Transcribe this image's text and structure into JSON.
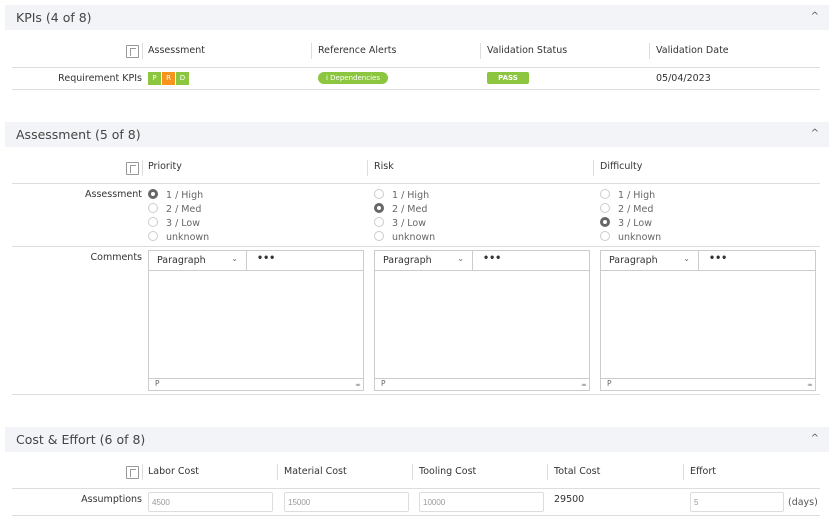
{
  "kpis": {
    "title": "KPIs (4 of 8)",
    "columns": [
      "Assessment",
      "Reference Alerts",
      "Validation Status",
      "Validation Date"
    ],
    "row": {
      "label": "Requirement KPIs",
      "badges": [
        {
          "text": "P",
          "color": "#8cc63f"
        },
        {
          "text": "R",
          "color": "#f7941d"
        },
        {
          "text": "D",
          "color": "#8cc63f"
        }
      ],
      "alert": "i Dependencies",
      "status": "PASS",
      "date": "05/04/2023"
    }
  },
  "assessment": {
    "title": "Assessment (5 of 8)",
    "columns": [
      "Priority",
      "Risk",
      "Difficulty"
    ],
    "row_label": "Assessment",
    "comments_label": "Comments",
    "options": [
      "1 / High",
      "2 / Med",
      "3 / Low",
      "unknown"
    ],
    "selected": {
      "Priority": "1 / High",
      "Risk": "2 / Med",
      "Difficulty": "3 / Low"
    },
    "editor": {
      "format": "Paragraph",
      "more": "•••",
      "footer": "P"
    }
  },
  "cost": {
    "title": "Cost & Effort (6 of 8)",
    "columns": [
      "Labor Cost",
      "Material Cost",
      "Tooling Cost",
      "Total Cost",
      "Effort"
    ],
    "row": {
      "label": "Assumptions",
      "labor": "4500",
      "material": "15000",
      "tooling": "10000",
      "total": "29500",
      "effort": "5",
      "unit": "(days)"
    }
  },
  "collapse_icon": "^"
}
